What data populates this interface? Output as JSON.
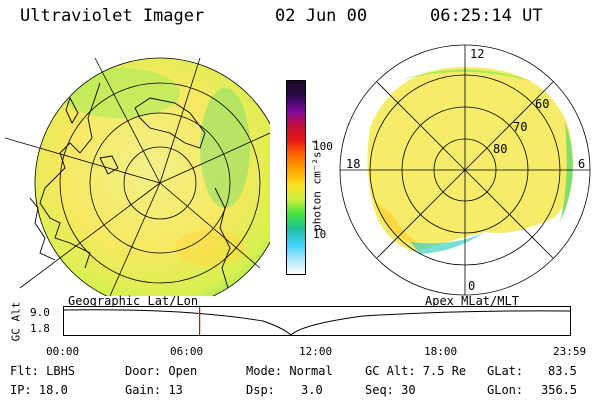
{
  "header": {
    "instrument": "Ultraviolet Imager",
    "date": "02 Jun 00",
    "time": "06:25:14 UT"
  },
  "geo_panel": {
    "label": "Geographic Lat/Lon"
  },
  "mag_panel": {
    "label": "Apex MLat/MLT",
    "mlt_labels": {
      "top": "12",
      "left": "18",
      "right": "6",
      "bottom": "0"
    },
    "lat_labels": [
      "60",
      "70",
      "80"
    ]
  },
  "colorbar": {
    "unit_label": "photon cm⁻²s⁻¹",
    "ticks": [
      "100",
      "10"
    ],
    "colors": [
      "#1a0a2a",
      "#2a0a4a",
      "#7a0aa0",
      "#c0103a",
      "#e81818",
      "#ff6a00",
      "#ffa400",
      "#ffe020",
      "#c8f040",
      "#40e040",
      "#20c0a0",
      "#40d0ff",
      "#a8e8ff",
      "#ffffff"
    ]
  },
  "timeline": {
    "y_label": "GC Alt",
    "y_ticks": [
      "9.0",
      "1.8"
    ],
    "x_ticks": [
      "00:00",
      "06:00",
      "12:00",
      "18:00",
      "23:59"
    ],
    "current_fraction": 0.268
  },
  "status": {
    "flt": "Flt: LBHS",
    "ip": "IP: 18.0",
    "door": "Door: Open",
    "gain": "Gain: 13",
    "mode": "Mode: Normal",
    "dsp_label": "Dsp:",
    "dsp_value": "3.0",
    "gcalt": "GC Alt: 7.5 Re",
    "seq": "Seq: 30",
    "glat_label": "GLat:",
    "glat_value": "83.5",
    "glon_label": "GLon:",
    "glon_value": "356.5"
  }
}
